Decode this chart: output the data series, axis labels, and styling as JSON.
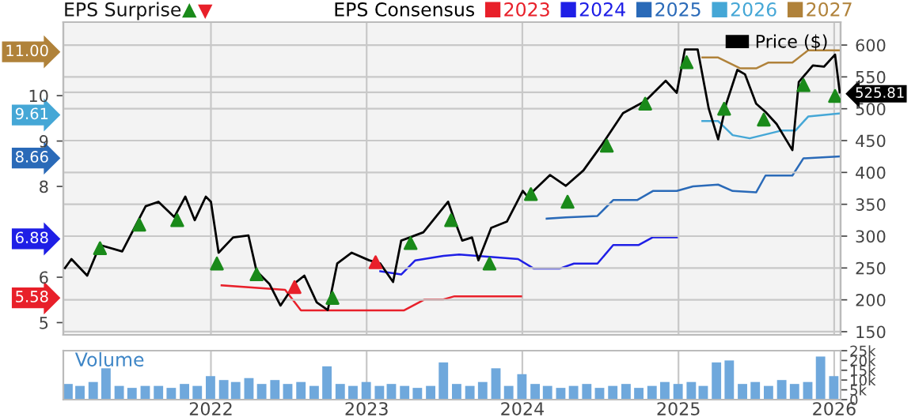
{
  "chart_data": [
    {
      "type": "line",
      "title": null,
      "annotations": [
        "EPS Surprise"
      ],
      "legend_title": "EPS Consensus",
      "legend": "top",
      "grid": true,
      "marker": "none",
      "tick_labels": "y",
      "xlim": [
        "2021-01-20",
        "2026-01-16"
      ],
      "xticks": [
        {
          "value": "2022-01-01",
          "label": null
        },
        {
          "value": "2023-01-01",
          "label": null
        },
        {
          "value": "2024-01-01",
          "label": null
        },
        {
          "value": "2025-01-01",
          "label": null
        },
        {
          "value": "2026-01-01",
          "label": null
        }
      ],
      "ylim": [
        4.73,
        11.62
      ],
      "yticks": [
        5,
        5.58,
        6,
        6.88,
        8,
        8.66,
        9,
        9.61,
        10,
        {
          "value": 11.0,
          "label": "11.00"
        }
      ],
      "y2lim": [
        145,
        636
      ],
      "y2ticks": [
        150,
        200,
        250,
        300,
        350,
        400,
        450,
        500,
        525.81,
        550,
        600
      ],
      "series": [
        {
          "name": "Price ($)",
          "color": "#000000",
          "axis": "y2",
          "x": [
            "2021-01-24",
            "2021-02-08",
            "2021-03-17",
            "2021-04-16",
            "2021-06-07",
            "2021-08-01",
            "2021-08-31",
            "2021-10-07",
            "2021-11-02",
            "2021-11-24",
            "2021-12-20",
            "2022-01-01",
            "2022-01-19",
            "2022-02-22",
            "2022-03-30",
            "2022-04-18",
            "2022-05-18",
            "2022-06-13",
            "2022-07-20",
            "2022-08-08",
            "2022-09-06",
            "2022-10-02",
            "2022-10-24",
            "2022-11-27",
            "2023-01-07",
            "2023-02-02",
            "2023-03-04",
            "2023-03-23",
            "2023-05-14",
            "2023-07-11",
            "2023-07-26",
            "2023-08-13",
            "2023-09-05",
            "2023-09-20",
            "2023-10-20",
            "2023-11-26",
            "2024-01-02",
            "2024-01-13",
            "2024-03-06",
            "2024-04-12",
            "2024-05-23",
            "2024-07-06",
            "2024-08-24",
            "2024-10-15",
            "2024-12-02",
            "2024-12-28",
            "2025-01-16",
            "2025-02-15",
            "2025-03-13",
            "2025-04-04",
            "2025-04-23",
            "2025-05-19",
            "2025-06-06",
            "2025-07-02",
            "2025-07-24",
            "2025-08-19",
            "2025-09-25",
            "2025-10-10",
            "2025-11-12",
            "2025-12-08",
            "2026-01-03",
            "2026-01-14"
          ],
          "values": [
            250,
            264,
            238,
            286,
            276,
            347,
            354,
            330,
            362,
            325,
            362,
            354,
            274,
            298,
            301,
            245,
            225,
            191,
            228,
            238,
            196,
            184,
            257,
            274,
            262,
            257,
            228,
            293,
            306,
            354,
            325,
            293,
            298,
            262,
            313,
            323,
            371,
            362,
            396,
            379,
            403,
            444,
            493,
            512,
            544,
            525,
            593,
            593,
            500,
            452,
            508,
            561,
            554,
            508,
            495,
            476,
            435,
            542,
            568,
            566,
            585,
            525.81
          ]
        },
        {
          "name": "2023",
          "color": "#e8202a",
          "axis": "y",
          "x": [
            "2022-01-26",
            "2022-06-24",
            "2022-07-31",
            "2023-03-30",
            "2023-05-17",
            "2023-06-30",
            "2023-07-26",
            "2023-12-29"
          ],
          "values": [
            5.82,
            5.72,
            5.27,
            5.27,
            5.51,
            5.51,
            5.58,
            5.58
          ]
        },
        {
          "name": "2024",
          "color": "#1f1fe6",
          "axis": "y",
          "x": [
            "2023-02-02",
            "2023-03-23",
            "2023-04-25",
            "2023-06-30",
            "2023-08-06",
            "2023-12-22",
            "2024-01-28",
            "2024-03-28",
            "2024-05-01",
            "2024-06-25",
            "2024-08-01",
            "2024-09-30",
            "2024-11-02",
            "2024-12-28"
          ],
          "values": [
            6.13,
            6.06,
            6.37,
            6.47,
            6.5,
            6.4,
            6.19,
            6.19,
            6.3,
            6.3,
            6.71,
            6.71,
            6.88,
            6.88
          ]
        },
        {
          "name": "2025",
          "color": "#2a6ab8",
          "axis": "y",
          "x": [
            "2024-02-27",
            "2024-04-12",
            "2024-06-25",
            "2024-08-01",
            "2024-09-26",
            "2024-11-02",
            "2024-12-28",
            "2025-02-04",
            "2025-04-04",
            "2025-05-08",
            "2025-07-02",
            "2025-07-24",
            "2025-09-25",
            "2025-10-21",
            "2026-01-14"
          ],
          "values": [
            7.29,
            7.32,
            7.35,
            7.7,
            7.7,
            7.9,
            7.9,
            8.0,
            8.04,
            7.9,
            7.87,
            8.24,
            8.24,
            8.62,
            8.66
          ]
        },
        {
          "name": "2026",
          "color": "#45a7d6",
          "axis": "y",
          "x": [
            "2025-02-26",
            "2025-04-04",
            "2025-05-08",
            "2025-06-17",
            "2025-08-30",
            "2025-10-02",
            "2025-11-01",
            "2026-01-14"
          ],
          "values": [
            9.44,
            9.44,
            9.13,
            9.06,
            9.23,
            9.23,
            9.54,
            9.61
          ]
        },
        {
          "name": "2027",
          "color": "#b0823a",
          "axis": "y",
          "x": [
            "2025-02-26",
            "2025-04-04",
            "2025-05-26",
            "2025-07-02",
            "2025-07-31",
            "2025-09-25",
            "2025-11-01",
            "2026-01-14"
          ],
          "values": [
            10.84,
            10.84,
            10.6,
            10.6,
            10.73,
            10.73,
            11.0,
            11.0
          ]
        },
        {
          "type": "scatter",
          "color": "#1a8a1a",
          "axis": "y2",
          "marker": "triangle",
          "x": [
            "2021-04-16",
            "2021-07-17",
            "2021-10-14",
            "2022-01-15",
            "2022-04-18",
            "2022-10-13",
            "2023-04-14",
            "2023-07-18",
            "2023-10-16",
            "2024-01-21",
            "2024-04-16",
            "2024-07-17",
            "2024-10-15",
            "2025-01-20",
            "2025-04-18",
            "2025-07-20",
            "2025-10-21",
            "2026-01-03"
          ],
          "values": [
            281,
            318,
            325,
            257,
            240,
            203,
            289,
            325,
            257,
            366,
            354,
            442,
            508,
            573,
            500,
            483,
            537,
            520
          ]
        },
        {
          "type": "scatter",
          "color": "#e8202a",
          "axis": "y2",
          "marker": "triangle",
          "x": [
            "2022-07-16",
            "2023-01-22"
          ],
          "values": [
            220,
            259
          ]
        }
      ]
    },
    {
      "type": "bar",
      "annotations": [
        "Volume"
      ],
      "color": "#6fa8dc",
      "grid": "x",
      "xlim": [
        "2021-01-20",
        "2026-01-16"
      ],
      "xticks": [
        {
          "value": "2022-01-01",
          "label": "2022"
        },
        {
          "value": "2023-01-01",
          "label": "2023"
        },
        {
          "value": "2024-01-01",
          "label": "2024"
        },
        {
          "value": "2025-01-01",
          "label": "2025"
        },
        {
          "value": "2026-01-01",
          "label": "2026"
        }
      ],
      "ylim": [
        0,
        25000
      ],
      "yticks": [
        0,
        {
          "value": 5000,
          "label": "5k"
        },
        {
          "value": 10000,
          "label": "10k"
        },
        {
          "value": 15000,
          "label": "15k"
        },
        {
          "value": 20000,
          "label": "20k"
        },
        {
          "value": 25000,
          "label": "25k"
        }
      ],
      "x": [
        "2021-01-31",
        "2021-02-28",
        "2021-03-31",
        "2021-04-30",
        "2021-05-31",
        "2021-06-30",
        "2021-07-31",
        "2021-08-31",
        "2021-09-30",
        "2021-10-31",
        "2021-11-30",
        "2021-12-31",
        "2022-01-31",
        "2022-02-28",
        "2022-03-31",
        "2022-04-30",
        "2022-05-31",
        "2022-06-30",
        "2022-07-31",
        "2022-08-31",
        "2022-09-30",
        "2022-10-31",
        "2022-11-30",
        "2022-12-31",
        "2023-01-31",
        "2023-02-28",
        "2023-03-31",
        "2023-04-30",
        "2023-05-31",
        "2023-06-30",
        "2023-07-31",
        "2023-08-31",
        "2023-09-30",
        "2023-10-31",
        "2023-11-30",
        "2023-12-31",
        "2024-01-31",
        "2024-02-29",
        "2024-03-31",
        "2024-04-30",
        "2024-05-31",
        "2024-06-30",
        "2024-07-31",
        "2024-08-31",
        "2024-09-30",
        "2024-10-31",
        "2024-11-30",
        "2024-12-31",
        "2025-01-31",
        "2025-02-28",
        "2025-03-31",
        "2025-04-30",
        "2025-05-31",
        "2025-06-30",
        "2025-07-31",
        "2025-08-31",
        "2025-09-30",
        "2025-10-31",
        "2025-11-30",
        "2025-12-31"
      ],
      "values": [
        8000,
        7000,
        9000,
        16000,
        7000,
        6000,
        7000,
        7000,
        6000,
        8000,
        7000,
        12000,
        10000,
        9000,
        11000,
        8000,
        10000,
        8000,
        9000,
        7000,
        17000,
        8000,
        7000,
        9000,
        7000,
        8000,
        7000,
        6000,
        7000,
        19000,
        8000,
        7000,
        9000,
        16000,
        7000,
        13000,
        8000,
        7000,
        6000,
        7000,
        8000,
        6000,
        7000,
        8000,
        6000,
        7000,
        9000,
        8000,
        9000,
        7000,
        19000,
        20000,
        8000,
        9000,
        7000,
        10000,
        8000,
        9000,
        22000,
        12000
      ]
    }
  ]
}
